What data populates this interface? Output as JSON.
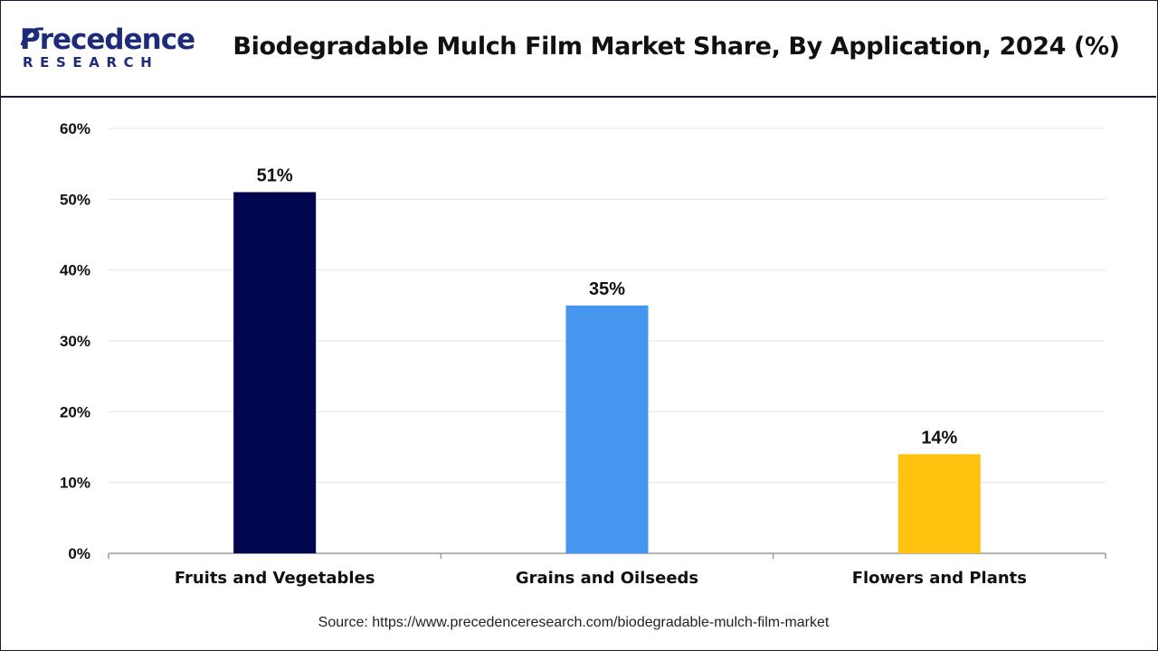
{
  "header": {
    "logo_word": "Precedence",
    "logo_sub": "RESEARCH",
    "title": "Biodegradable Mulch Film Market Share, By Application, 2024 (%)"
  },
  "colors": {
    "brand": "#1d2b7a",
    "bar_fruits": "#000650",
    "bar_grains": "#4695ee",
    "bar_flowers": "#ffc20e",
    "grid": "#e6e6e6"
  },
  "chart_data": {
    "type": "bar",
    "title": "Biodegradable Mulch Film Market Share, By Application, 2024 (%)",
    "categories": [
      "Fruits and Vegetables",
      "Grains and Oilseeds",
      "Flowers and Plants"
    ],
    "values": [
      51,
      35,
      14
    ],
    "data_labels": [
      "51%",
      "35%",
      "14%"
    ],
    "bar_colors": [
      "#000650",
      "#4695ee",
      "#ffc20e"
    ],
    "ylim": [
      0,
      60
    ],
    "yticks": [
      0,
      10,
      20,
      30,
      40,
      50,
      60
    ],
    "ytick_labels": [
      "0%",
      "10%",
      "20%",
      "30%",
      "40%",
      "50%",
      "60%"
    ],
    "xlabel": "",
    "ylabel": "",
    "grid": true,
    "legend": "none"
  },
  "footer": {
    "source": "Source: https://www.precedenceresearch.com/biodegradable-mulch-film-market"
  }
}
